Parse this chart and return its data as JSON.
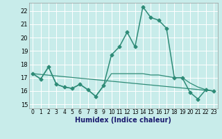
{
  "xlabel": "Humidex (Indice chaleur)",
  "bg_color": "#c8ecea",
  "grid_color": "#ffffff",
  "line_color": "#2e8b77",
  "xlim": [
    -0.5,
    23.5
  ],
  "ylim": [
    14.7,
    22.6
  ],
  "yticks": [
    15,
    16,
    17,
    18,
    19,
    20,
    21,
    22
  ],
  "xticks": [
    0,
    1,
    2,
    3,
    4,
    5,
    6,
    7,
    8,
    9,
    10,
    11,
    12,
    13,
    14,
    15,
    16,
    17,
    18,
    19,
    20,
    21,
    22,
    23
  ],
  "series_main": {
    "x": [
      0,
      1,
      2,
      3,
      4,
      5,
      6,
      7,
      8,
      9,
      10,
      11,
      12,
      13,
      14,
      15,
      16,
      17,
      18,
      19,
      20,
      21,
      22,
      23
    ],
    "y": [
      17.3,
      16.9,
      17.8,
      16.5,
      16.3,
      16.2,
      16.5,
      16.1,
      15.6,
      16.4,
      18.7,
      19.3,
      20.4,
      19.3,
      22.3,
      21.5,
      21.3,
      20.7,
      17.0,
      17.0,
      15.9,
      15.4,
      16.1,
      16.0
    ]
  },
  "series_flat": {
    "x": [
      0,
      1,
      2,
      3,
      4,
      5,
      6,
      7,
      8,
      9,
      10,
      11,
      12,
      13,
      14,
      15,
      16,
      17,
      18,
      19,
      20,
      21,
      22,
      23
    ],
    "y": [
      17.3,
      16.9,
      17.8,
      16.5,
      16.3,
      16.2,
      16.5,
      16.1,
      15.6,
      16.4,
      17.3,
      17.3,
      17.3,
      17.3,
      17.3,
      17.2,
      17.2,
      17.1,
      17.0,
      17.0,
      16.6,
      16.3,
      16.1,
      16.0
    ]
  },
  "series_diag": {
    "x": [
      0,
      23
    ],
    "y": [
      17.3,
      16.0
    ]
  },
  "xlabel_color": "#1a1a6e",
  "tick_fontsize": 5.5,
  "xlabel_fontsize": 7
}
